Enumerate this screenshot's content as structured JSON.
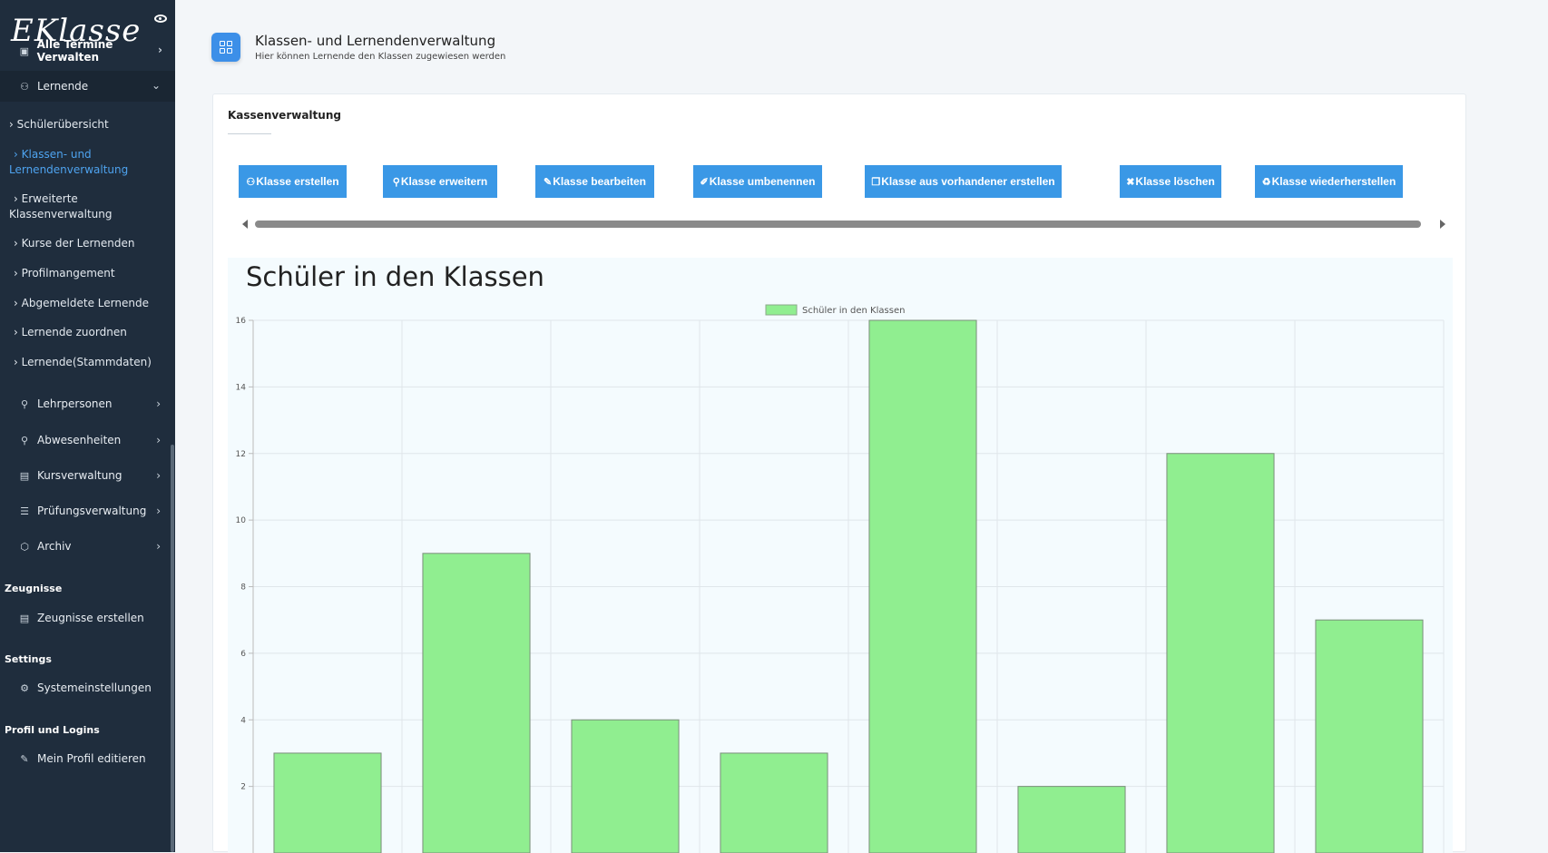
{
  "sidebar": {
    "logo": "EKlasse",
    "top_item": "Alle Termine Verwalten",
    "group": "Lernende",
    "sub_items": [
      "Schülerübersicht",
      "Klassen- und Lernendenverwaltung",
      "Erweiterte Klassenverwaltung",
      "Kurse der Lernenden",
      "Profilmangement",
      "Abgemeldete Lernende",
      "Lernende zuordnen",
      "Lernende(Stammdaten)"
    ],
    "menus": [
      "Lehrpersonen",
      "Abwesenheiten",
      "Kursverwaltung",
      "Prüfungsverwaltung",
      "Archiv"
    ],
    "sections": [
      {
        "title": "Zeugnisse",
        "item": "Zeugnisse erstellen"
      },
      {
        "title": "Settings",
        "item": "Systemeinstellungen"
      },
      {
        "title": "Profil und Logins",
        "item": "Mein Profil editieren"
      }
    ]
  },
  "header": {
    "title": "Klassen- und Lernendenverwaltung",
    "subtitle": "Hier können Lernende den Klassen zugewiesen werden"
  },
  "card": {
    "title": "Kassenverwaltung",
    "buttons": [
      "Klasse erstellen",
      "Klasse erweitern",
      "Klasse bearbeiten",
      "Klasse umbenennen",
      "Klasse aus vorhandener erstellen",
      "Klasse löschen",
      "Klasse wiederherstellen"
    ]
  },
  "chart_data": {
    "type": "bar",
    "title": "Schüler in den Klassen",
    "legend": [
      "Schüler in den Klassen"
    ],
    "legend_position": "top",
    "series": [
      {
        "name": "Schüler in den Klassen",
        "values": [
          3,
          9,
          4,
          3,
          16,
          2,
          12,
          7
        ]
      }
    ],
    "ylim": [
      0,
      16
    ],
    "yticks": [
      2,
      4,
      6,
      8,
      10,
      12,
      14,
      16
    ],
    "grid": true,
    "bar_color": "#90ee90"
  }
}
